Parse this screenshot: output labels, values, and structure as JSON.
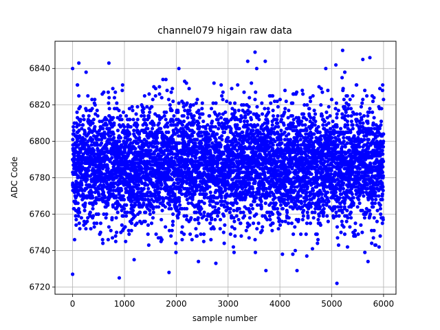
{
  "chart_data": {
    "type": "scatter",
    "title": "channel079 higain raw data",
    "xlabel": "sample number",
    "ylabel": "ADC Code",
    "xlim": [
      -340,
      6240
    ],
    "ylim": [
      6716,
      6855
    ],
    "xticks": [
      0,
      1000,
      2000,
      3000,
      4000,
      5000,
      6000
    ],
    "yticks": [
      6720,
      6740,
      6760,
      6780,
      6800,
      6820,
      6840
    ],
    "grid": true,
    "marker_color": "#0000ff",
    "n_points": 6000,
    "distribution": {
      "mean": 6787,
      "std": 16
    },
    "notable_points": [
      {
        "x": 0,
        "y": 6840
      },
      {
        "x": 0,
        "y": 6727
      },
      {
        "x": 120,
        "y": 6843
      },
      {
        "x": 700,
        "y": 6843
      },
      {
        "x": 900,
        "y": 6725
      },
      {
        "x": 1860,
        "y": 6728
      },
      {
        "x": 2050,
        "y": 6840
      },
      {
        "x": 3520,
        "y": 6849
      },
      {
        "x": 3730,
        "y": 6729
      },
      {
        "x": 4330,
        "y": 6729
      },
      {
        "x": 5080,
        "y": 6842
      },
      {
        "x": 5100,
        "y": 6722
      },
      {
        "x": 5210,
        "y": 6850
      },
      {
        "x": 5600,
        "y": 6845
      },
      {
        "x": 5700,
        "y": 6734
      }
    ]
  }
}
